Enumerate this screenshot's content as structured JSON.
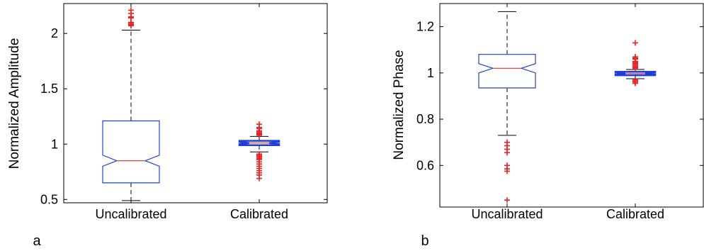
{
  "chart_data": [
    {
      "type": "box",
      "panel_label": "a",
      "title": "",
      "xlabel": "",
      "ylabel": "Normalized Amplitude",
      "ylim": [
        0.47,
        2.27
      ],
      "yticks": [
        0.5,
        1,
        1.5,
        2
      ],
      "ytick_labels": [
        "0.5",
        "1",
        "1.5",
        "2"
      ],
      "notched": true,
      "categories": [
        "Uncalibrated",
        "Calibrated"
      ],
      "boxes": [
        {
          "category": "Uncalibrated",
          "whisker_low": 0.49,
          "q1": 0.65,
          "median": 0.85,
          "q3": 1.21,
          "whisker_high": 2.03,
          "notch_low": 0.8,
          "notch_high": 0.9,
          "outliers": [
            2.07,
            2.08,
            2.09,
            2.1,
            2.14,
            2.15,
            2.18,
            2.21
          ]
        },
        {
          "category": "Calibrated",
          "whisker_low": 0.93,
          "q1": 0.99,
          "median": 1.01,
          "q3": 1.03,
          "whisker_high": 1.07,
          "notch_low": 1.0,
          "notch_high": 1.02,
          "outliers": [
            0.69,
            0.72,
            0.74,
            0.76,
            0.78,
            0.8,
            0.82,
            0.84,
            0.86,
            0.87,
            0.88,
            0.89,
            0.9,
            0.91,
            1.08,
            1.09,
            1.1,
            1.11,
            1.12,
            1.14,
            1.15,
            1.18
          ]
        }
      ]
    },
    {
      "type": "box",
      "panel_label": "b",
      "title": "",
      "xlabel": "",
      "ylabel": "Normalized Phase",
      "ylim": [
        0.42,
        1.3
      ],
      "yticks": [
        0.6,
        0.8,
        1,
        1.2
      ],
      "ytick_labels": [
        "0.6",
        "0.8",
        "1",
        "1.2"
      ],
      "notched": true,
      "categories": [
        "Uncalibrated",
        "Calibrated"
      ],
      "boxes": [
        {
          "category": "Uncalibrated",
          "whisker_low": 0.73,
          "q1": 0.935,
          "median": 1.02,
          "q3": 1.08,
          "whisker_high": 1.265,
          "notch_low": 1.0,
          "notch_high": 1.04,
          "outliers": [
            0.45,
            0.575,
            0.585,
            0.6,
            0.655,
            0.67,
            0.685,
            0.7
          ]
        },
        {
          "category": "Calibrated",
          "whisker_low": 0.975,
          "q1": 0.99,
          "median": 0.997,
          "q3": 1.005,
          "whisker_high": 1.015,
          "notch_low": 0.993,
          "notch_high": 1.001,
          "outliers": [
            0.955,
            0.96,
            0.965,
            0.97,
            1.02,
            1.025,
            1.03,
            1.035,
            1.04,
            1.045,
            1.05,
            1.06,
            1.065,
            1.07,
            1.13
          ]
        }
      ]
    }
  ],
  "colors": {
    "box": "#1f3fd8",
    "median": "#e03020",
    "outlier": "#ee2222",
    "whisker": "#000000",
    "axes": "#000000"
  }
}
